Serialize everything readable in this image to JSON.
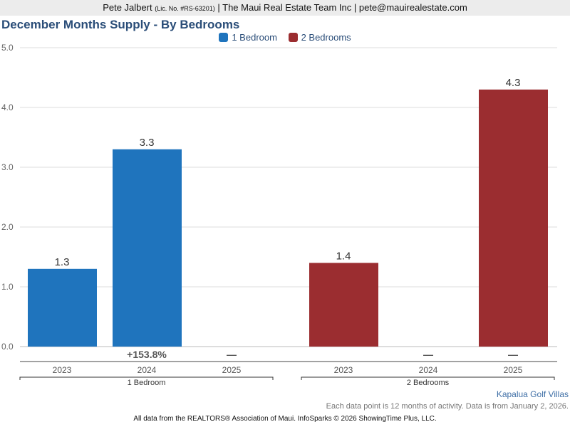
{
  "header": {
    "name": "Pete Jalbert",
    "license": "(Lic. No. #RS-63201)",
    "rest": "| The Maui Real Estate Team Inc | pete@mauirealestate.com"
  },
  "chart_data": {
    "type": "bar",
    "title": "December Months Supply - By Bedrooms",
    "ylim": [
      0,
      5
    ],
    "yticks": [
      "0.0",
      "1.0",
      "2.0",
      "3.0",
      "4.0",
      "5.0"
    ],
    "grid": true,
    "legend_placement": "top",
    "groups": [
      {
        "name": "1 Bedroom",
        "color": "#1f74bd",
        "categories": [
          "2023",
          "2024",
          "2025"
        ],
        "values": [
          1.3,
          3.3,
          null
        ],
        "labels": [
          "1.3",
          "3.3",
          ""
        ],
        "changes": [
          "",
          "+153.8%",
          "—"
        ]
      },
      {
        "name": "2 Bedrooms",
        "color": "#9b2d30",
        "categories": [
          "2023",
          "2024",
          "2025"
        ],
        "values": [
          1.4,
          null,
          4.3
        ],
        "labels": [
          "1.4",
          "",
          "4.3"
        ],
        "changes": [
          "",
          "—",
          "—"
        ]
      }
    ]
  },
  "area": "Kapalua Golf Villas",
  "note": "Each data point is 12 months of activity. Data is from January 2, 2026.",
  "footer": "All data from the REALTORS® Association of Maui. InfoSparks © 2026 ShowingTime Plus, LLC."
}
